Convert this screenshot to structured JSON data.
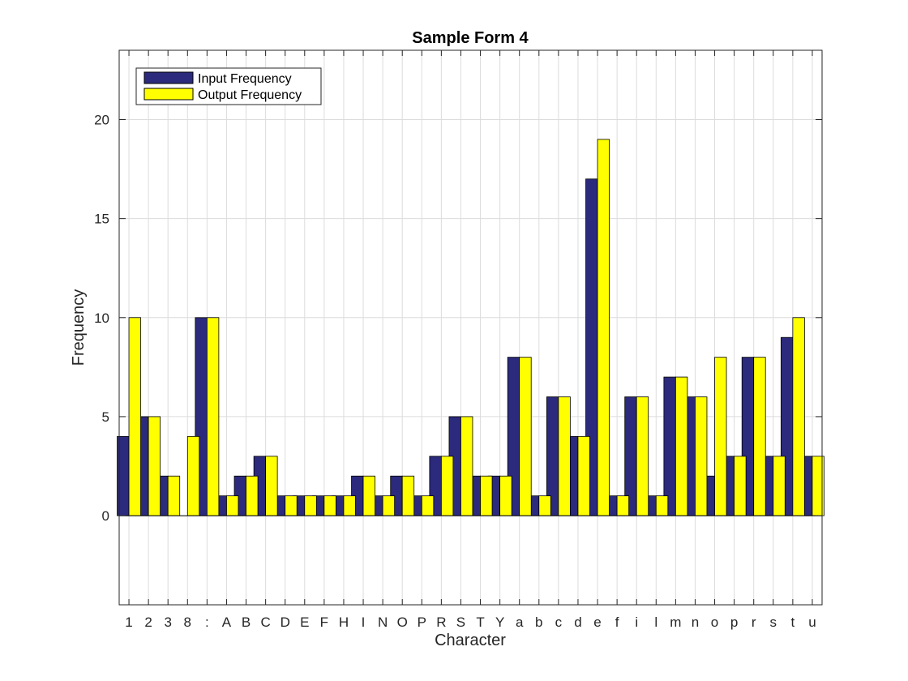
{
  "chart_data": {
    "type": "bar",
    "title": "Sample Form 4",
    "xlabel": "Character",
    "ylabel": "Frequency",
    "ylim": [
      -4.5,
      23.5
    ],
    "yticks": [
      0,
      5,
      10,
      15,
      20
    ],
    "grid": true,
    "legend_position": "top-left",
    "categories": [
      "1",
      "2",
      "3",
      "8",
      ":",
      "A",
      "B",
      "C",
      "D",
      "E",
      "F",
      "H",
      "I",
      "N",
      "O",
      "P",
      "R",
      "S",
      "T",
      "Y",
      "a",
      "b",
      "c",
      "d",
      "e",
      "f",
      "i",
      "l",
      "m",
      "n",
      "o",
      "p",
      "r",
      "s",
      "t",
      "u"
    ],
    "series": [
      {
        "name": "Input Frequency",
        "color": "#2b2a7c",
        "values": [
          4,
          5,
          2,
          0,
          10,
          1,
          2,
          3,
          1,
          1,
          1,
          1,
          2,
          1,
          2,
          1,
          3,
          5,
          2,
          2,
          8,
          1,
          6,
          4,
          17,
          1,
          6,
          1,
          7,
          6,
          2,
          3,
          8,
          3,
          9,
          3
        ]
      },
      {
        "name": "Output Frequency",
        "color": "#ffff00",
        "values": [
          10,
          5,
          2,
          4,
          10,
          1,
          2,
          3,
          1,
          1,
          1,
          1,
          2,
          1,
          2,
          1,
          3,
          5,
          2,
          2,
          8,
          1,
          6,
          4,
          19,
          1,
          6,
          1,
          7,
          6,
          8,
          3,
          8,
          3,
          10,
          3
        ]
      }
    ]
  }
}
